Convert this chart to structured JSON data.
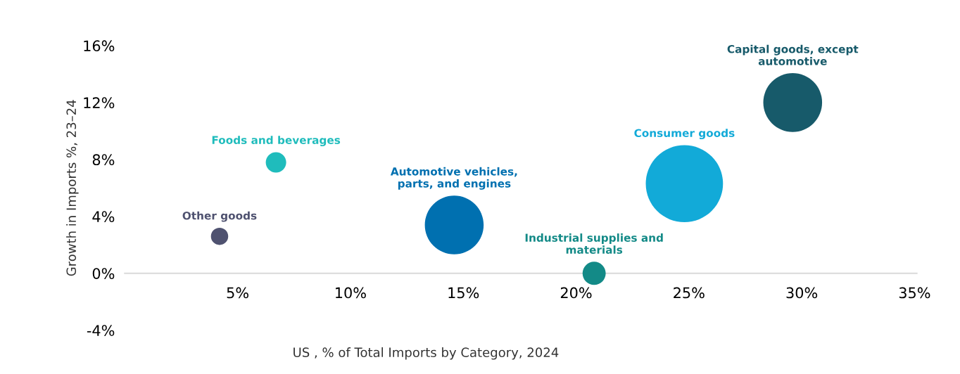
{
  "chart_data": {
    "type": "bubble",
    "xlabel": "US , % of Total Imports by Category, 2024",
    "ylabel": "Growth in Imports %, 23–24",
    "series": [
      {
        "name": "Other goods",
        "color": "#4f5270",
        "x": [
          4.2
        ],
        "values": [
          2.6
        ],
        "sizes": [
          0.05
        ]
      },
      {
        "name": "Foods and beverages",
        "color": "#1fbcbc",
        "x": [
          6.7
        ],
        "values": [
          7.8
        ],
        "sizes": [
          0.07
        ]
      },
      {
        "name": "Automotive vehicles,\nparts, and engines",
        "color": "#0070b0",
        "x": [
          14.6
        ],
        "values": [
          3.4
        ],
        "sizes": [
          0.58
        ]
      },
      {
        "name": "Industrial supplies and\nmaterials",
        "color": "#138a87",
        "x": [
          20.8
        ],
        "values": [
          0
        ],
        "sizes": [
          0.09
        ]
      },
      {
        "name": "Consumer goods",
        "color": "#12aad8",
        "x": [
          24.8
        ],
        "values": [
          6.3
        ],
        "sizes": [
          1
        ]
      },
      {
        "name": "Capital goods, except\nautomotive",
        "color": "#175a6a",
        "x": [
          29.6
        ],
        "values": [
          12
        ],
        "sizes": [
          0.58
        ]
      }
    ],
    "xlim": [
      0,
      35.1
    ],
    "ylim": [
      -4,
      16
    ],
    "xticks": [
      {
        "value": 5,
        "label": "5%"
      },
      {
        "value": 10,
        "label": "10%"
      },
      {
        "value": 15,
        "label": "15%"
      },
      {
        "value": 20,
        "label": "20%"
      },
      {
        "value": 25,
        "label": "25%"
      },
      {
        "value": 30,
        "label": "30%"
      },
      {
        "value": 35,
        "label": "35%"
      }
    ],
    "yticks": [
      {
        "value": -4,
        "label": "-4%"
      },
      {
        "value": 0,
        "label": "0%"
      },
      {
        "value": 4,
        "label": "4%"
      },
      {
        "value": 8,
        "label": "8%"
      },
      {
        "value": 12,
        "label": "12%"
      },
      {
        "value": 16,
        "label": "16%"
      }
    ],
    "grid": false,
    "legend": false
  }
}
